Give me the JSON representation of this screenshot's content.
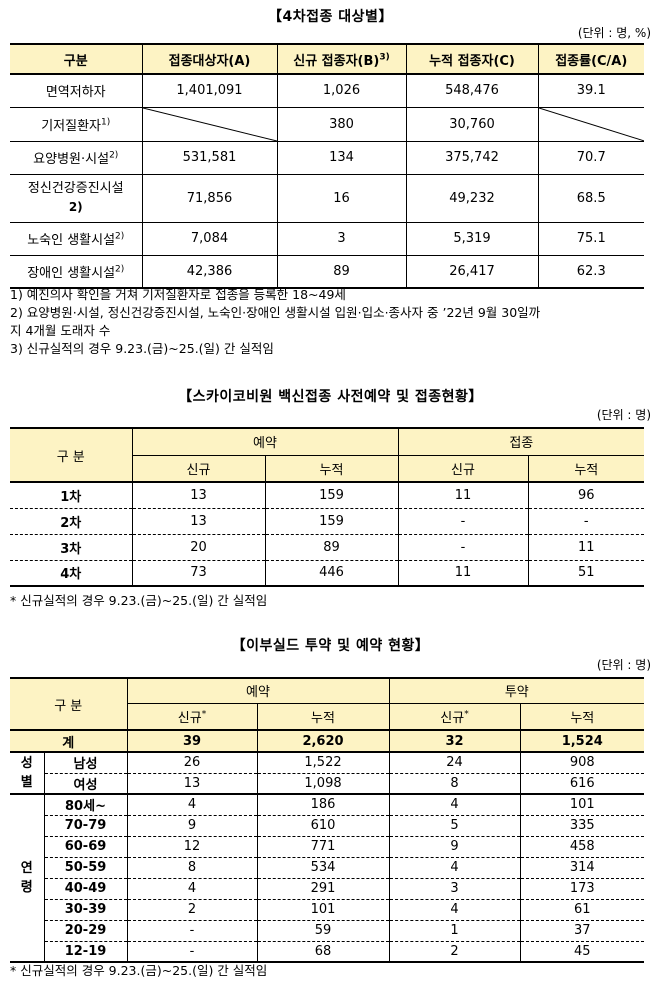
{
  "t1": {
    "title": "【4차접종 대상별】",
    "unit": "(단위 : 명, %)",
    "headers": [
      "구분",
      "접종대상자(A)",
      "신규 접종자(B)",
      "누적 접종자(C)",
      "접종률(C/A)"
    ],
    "header_sup": "3)",
    "rows": [
      {
        "label": "면역저하자",
        "sup": "",
        "a": "1,401,091",
        "b": "1,026",
        "c": "548,476",
        "d": "39.1"
      },
      {
        "label": "기저질환자",
        "sup": "1)",
        "a": "",
        "b": "380",
        "c": "30,760",
        "d": ""
      },
      {
        "label": "요양병원·시설",
        "sup": "2)",
        "a": "531,581",
        "b": "134",
        "c": "375,742",
        "d": "70.7"
      },
      {
        "label": "정신건강증진시설",
        "sup": "2)",
        "a": "71,856",
        "b": "16",
        "c": "49,232",
        "d": "68.5"
      },
      {
        "label": "노숙인 생활시설",
        "sup": "2)",
        "a": "7,084",
        "b": "3",
        "c": "5,319",
        "d": "75.1"
      },
      {
        "label": "장애인 생활시설",
        "sup": "2)",
        "a": "42,386",
        "b": "89",
        "c": "26,417",
        "d": "62.3"
      }
    ],
    "notes": [
      "1) 예진의사 확인을 거쳐 기저질환자로 접종을 등록한 18~49세",
      "2) 요양병원·시설, 정신건강증진시설, 노숙인·장애인 생활시설 입원·입소·종사자 중 ’22년 9월 30일까",
      "지 4개월 도래자 수",
      "3) 신규실적의 경우 9.23.(금)~25.(일) 간 실적임"
    ]
  },
  "t2": {
    "title": "【스카이코비원 백신접종 사전예약 및 접종현황】",
    "unit": "(단위 : 명)",
    "h_label": "구 분",
    "h_group1": "예약",
    "h_group2": "접종",
    "h_sub": [
      "신규",
      "누적",
      "신규",
      "누적"
    ],
    "rows": [
      {
        "label": "1차",
        "v": [
          "13",
          "159",
          "11",
          "96"
        ]
      },
      {
        "label": "2차",
        "v": [
          "13",
          "159",
          "-",
          "-"
        ]
      },
      {
        "label": "3차",
        "v": [
          "20",
          "89",
          "-",
          "11"
        ]
      },
      {
        "label": "4차",
        "v": [
          "73",
          "446",
          "11",
          "51"
        ]
      }
    ],
    "note": "* 신규실적의 경우 9.23.(금)~25.(일) 간 실적임"
  },
  "t3": {
    "title": "【이부실드 투약 및 예약 현황】",
    "unit": "(단위 : 명)",
    "h_label": "구 분",
    "h_group1": "예약",
    "h_group2": "투약",
    "h_sub": [
      "신규",
      "누적",
      "신규",
      "누적"
    ],
    "h_sup": "*",
    "total": {
      "label": "계",
      "v": [
        "39",
        "2,620",
        "32",
        "1,524"
      ]
    },
    "gender_label": [
      "성",
      "별"
    ],
    "gender": [
      {
        "label": "남성",
        "v": [
          "26",
          "1,522",
          "24",
          "908"
        ]
      },
      {
        "label": "여성",
        "v": [
          "13",
          "1,098",
          "8",
          "616"
        ]
      }
    ],
    "age_label": [
      "연",
      "령"
    ],
    "age": [
      {
        "label": "80세~",
        "v": [
          "4",
          "186",
          "4",
          "101"
        ]
      },
      {
        "label": "70-79",
        "v": [
          "9",
          "610",
          "5",
          "335"
        ]
      },
      {
        "label": "60-69",
        "v": [
          "12",
          "771",
          "9",
          "458"
        ]
      },
      {
        "label": "50-59",
        "v": [
          "8",
          "534",
          "4",
          "314"
        ]
      },
      {
        "label": "40-49",
        "v": [
          "4",
          "291",
          "3",
          "173"
        ]
      },
      {
        "label": "30-39",
        "v": [
          "2",
          "101",
          "4",
          "61"
        ]
      },
      {
        "label": "20-29",
        "v": [
          "-",
          "59",
          "1",
          "37"
        ]
      },
      {
        "label": "12-19",
        "v": [
          "-",
          "68",
          "2",
          "45"
        ]
      }
    ],
    "note": "* 신규실적의 경우 9.23.(금)~25.(일) 간 실적임"
  }
}
